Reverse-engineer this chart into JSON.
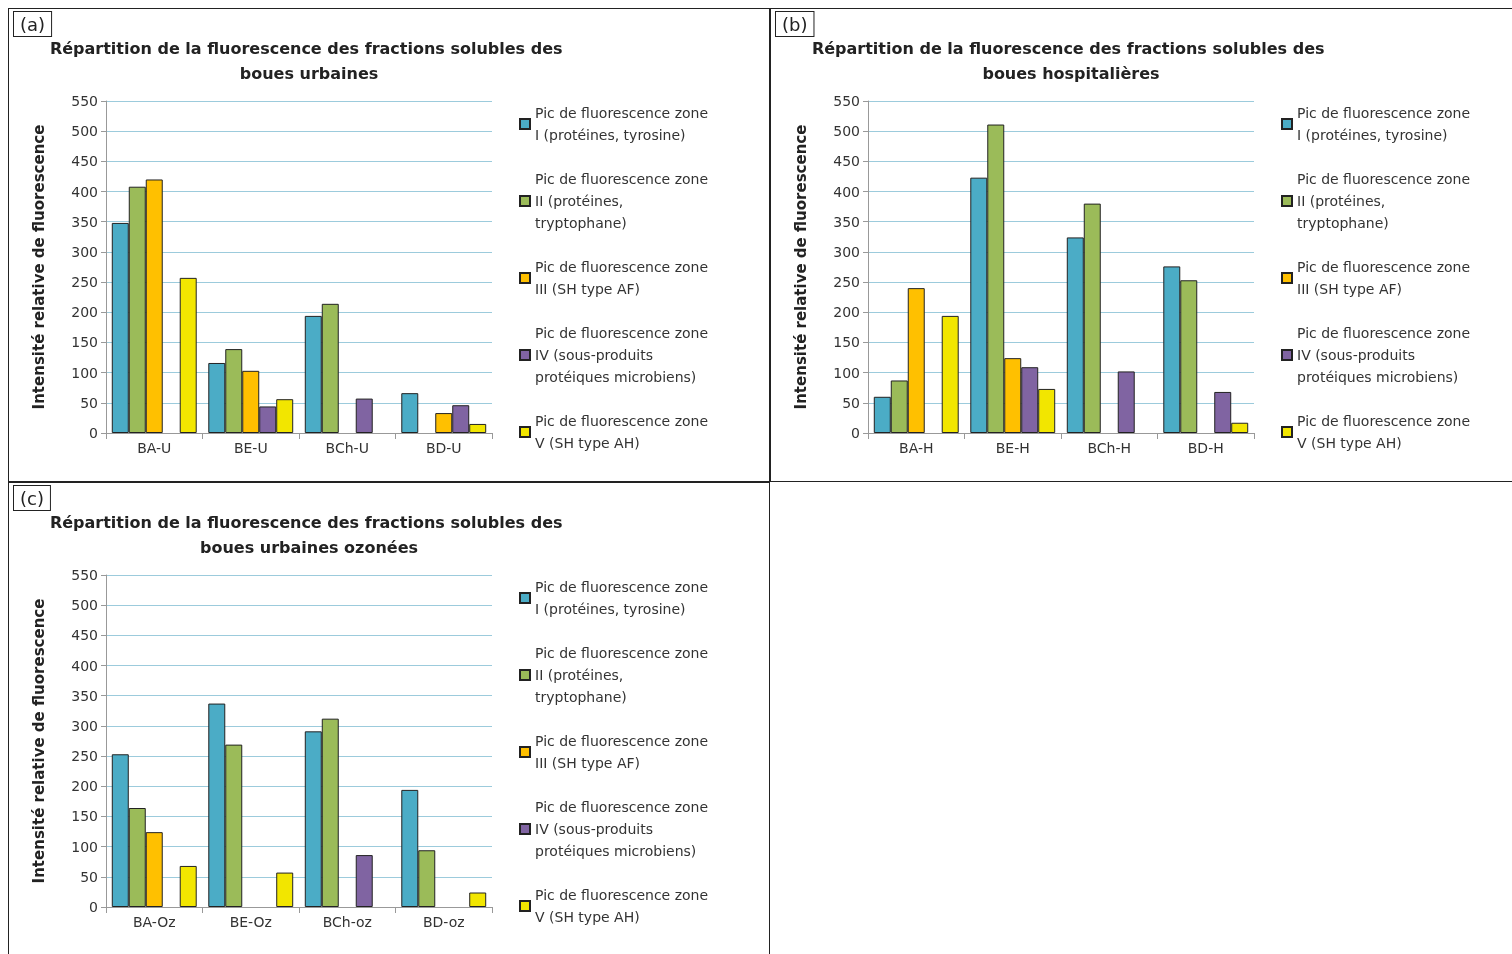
{
  "chart_data": [
    {
      "type": "bar",
      "title": "Répartition de la fluorescence des fractions solubles des boues urbaines",
      "ylabel": "Intensité relative de fluorescence",
      "annotations": [
        "(a)"
      ],
      "categories": [
        "BA-U",
        "BE-U",
        "BCh-U",
        "BD-U"
      ],
      "ylim": [
        0,
        550
      ],
      "yticks": [
        0,
        50,
        100,
        150,
        200,
        250,
        300,
        350,
        400,
        450,
        500,
        550
      ],
      "grid": "y",
      "legend": "right",
      "series": [
        {
          "name": "Pic de fluorescence zone I (protéines, tyrosine)",
          "color": "#4bacc6",
          "values": [
            348,
            116,
            194,
            66
          ]
        },
        {
          "name": "Pic de fluorescence zone II (protéines, tryptophane)",
          "color": "#9bbb59",
          "values": [
            408,
            139,
            214,
            null
          ]
        },
        {
          "name": "Pic de fluorescence zone III (SH type AF)",
          "color": "#ffc000",
          "values": [
            420,
            103,
            null,
            33
          ]
        },
        {
          "name": "Pic de fluorescence zone IV (sous-produits protéiques microbiens)",
          "color": "#8064a2",
          "values": [
            null,
            44,
            57,
            46
          ]
        },
        {
          "name": "Pic de fluorescence zone V (SH type AH)",
          "color": "#f2e600",
          "values": [
            257,
            56,
            null,
            15
          ]
        }
      ]
    },
    {
      "type": "bar",
      "title": "Répartition de la fluorescence des fractions solubles des boues hospitalières",
      "ylabel": "Intensité relative de fluorescence",
      "annotations": [
        "(b)"
      ],
      "categories": [
        "BA-H",
        "BE-H",
        "BCh-H",
        "BD-H"
      ],
      "ylim": [
        0,
        550
      ],
      "yticks": [
        0,
        50,
        100,
        150,
        200,
        250,
        300,
        350,
        400,
        450,
        500,
        550
      ],
      "grid": "y",
      "legend": "right",
      "series": [
        {
          "name": "Pic de fluorescence zone I (protéines, tyrosine)",
          "color": "#4bacc6",
          "values": [
            60,
            423,
            324,
            276
          ]
        },
        {
          "name": "Pic de fluorescence zone II (protéines, tryptophane)",
          "color": "#9bbb59",
          "values": [
            87,
            511,
            380,
            253
          ]
        },
        {
          "name": "Pic de fluorescence zone III (SH type AF)",
          "color": "#ffc000",
          "values": [
            240,
            124,
            null,
            null
          ]
        },
        {
          "name": "Pic de fluorescence zone IV (sous-produits protéiques microbiens)",
          "color": "#8064a2",
          "values": [
            null,
            109,
            102,
            68
          ]
        },
        {
          "name": "Pic de fluorescence zone V (SH type AH)",
          "color": "#f2e600",
          "values": [
            194,
            73,
            null,
            17
          ]
        }
      ]
    },
    {
      "type": "bar",
      "title": "Répartition de la fluorescence des fractions solubles des boues urbaines ozonées",
      "ylabel": "Intensité relative de fluorescence",
      "annotations": [
        "(c)"
      ],
      "categories": [
        "BA-Oz",
        "BE-Oz",
        "BCh-oz",
        "BD-oz"
      ],
      "ylim": [
        0,
        550
      ],
      "yticks": [
        0,
        50,
        100,
        150,
        200,
        250,
        300,
        350,
        400,
        450,
        500,
        550
      ],
      "grid": "y",
      "legend": "right",
      "series": [
        {
          "name": "Pic de fluorescence zone I (protéines, tyrosine)",
          "color": "#4bacc6",
          "values": [
            253,
            337,
            291,
            194
          ]
        },
        {
          "name": "Pic de fluorescence zone II (protéines, tryptophane)",
          "color": "#9bbb59",
          "values": [
            164,
            269,
            312,
            94
          ]
        },
        {
          "name": "Pic de fluorescence zone III (SH type AF)",
          "color": "#ffc000",
          "values": [
            124,
            null,
            null,
            null
          ]
        },
        {
          "name": "Pic de fluorescence zone IV (sous-produits protéiques microbiens)",
          "color": "#8064a2",
          "values": [
            null,
            null,
            86,
            null
          ]
        },
        {
          "name": "Pic de fluorescence zone V (SH type AH)",
          "color": "#f2e600",
          "values": [
            68,
            57,
            null,
            24
          ]
        }
      ]
    }
  ]
}
